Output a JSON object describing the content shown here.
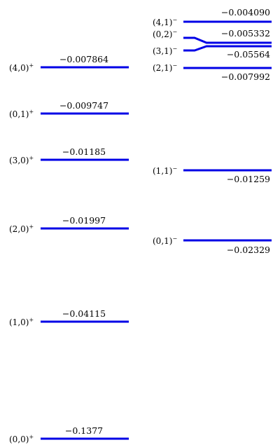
{
  "diagram": {
    "levels": [
      {
        "id": "p40",
        "state": "(4,0)",
        "parity": "+",
        "energy": "−0.007864"
      },
      {
        "id": "p01",
        "state": "(0,1)",
        "parity": "+",
        "energy": "−0.009747"
      },
      {
        "id": "p30",
        "state": "(3,0)",
        "parity": "+",
        "energy": "−0.01185"
      },
      {
        "id": "p20",
        "state": "(2,0)",
        "parity": "+",
        "energy": "−0.01997"
      },
      {
        "id": "p10",
        "state": "(1,0)",
        "parity": "+",
        "energy": "−0.04115"
      },
      {
        "id": "p00",
        "state": "(0,0)",
        "parity": "+",
        "energy": "−0.1377"
      },
      {
        "id": "m41",
        "state": "(4,1)",
        "parity": "−",
        "energy": "−0.004090"
      },
      {
        "id": "m02",
        "state": "(0,2)",
        "parity": "−",
        "energy": "−0.005332"
      },
      {
        "id": "m31",
        "state": "(3,1)",
        "parity": "−",
        "energy": "−0.05564"
      },
      {
        "id": "m21",
        "state": "(2,1)",
        "parity": "−",
        "energy": "−0.007992"
      },
      {
        "id": "m11",
        "state": "(1,1)",
        "parity": "−",
        "energy": "−0.01259"
      },
      {
        "id": "m01",
        "state": "(0,1)",
        "parity": "−",
        "energy": "−0.02329"
      }
    ],
    "line_color": "#0000e6"
  }
}
